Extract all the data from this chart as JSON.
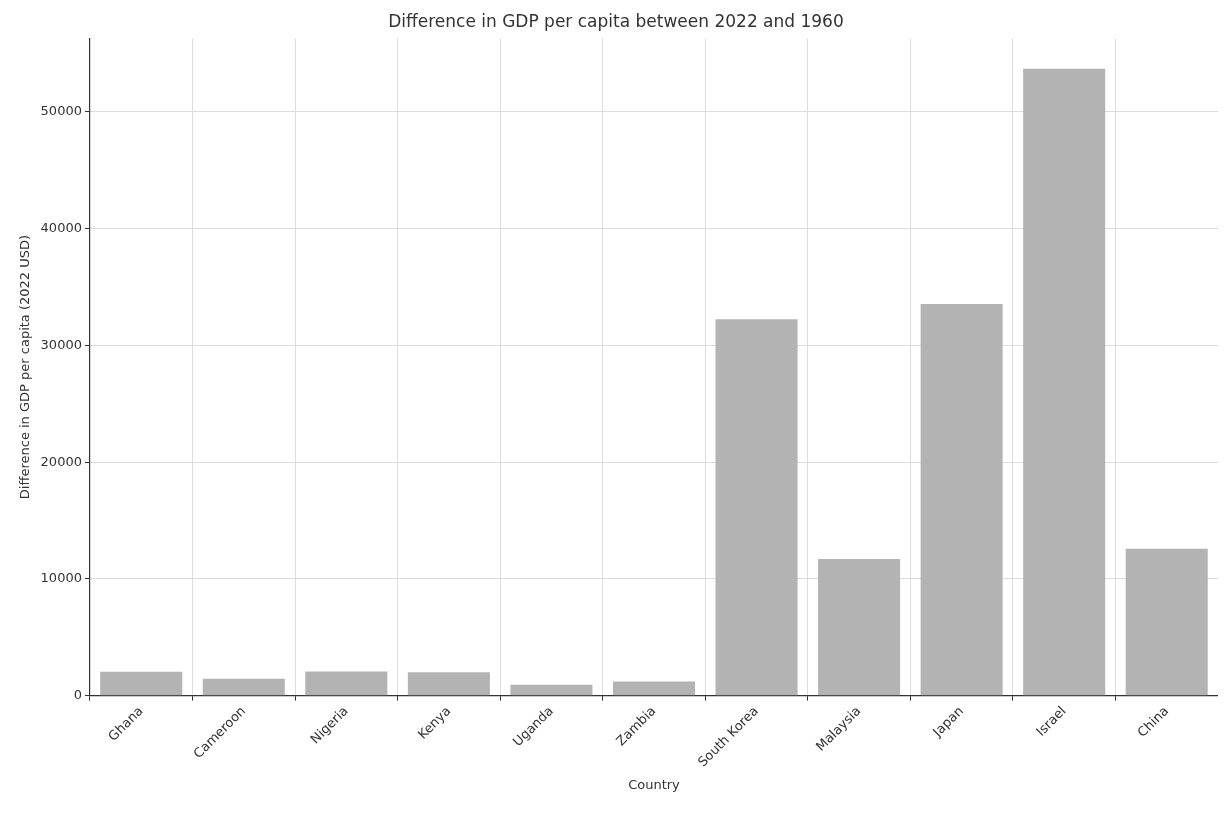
{
  "chart_data": {
    "type": "bar",
    "title": "Difference in GDP per capita between 2022 and 1960",
    "xlabel": "Country",
    "ylabel": "Difference in GDP per capita (2022 USD)",
    "categories": [
      "Ghana",
      "Cameroon",
      "Nigeria",
      "Kenya",
      "Uganda",
      "Zambia",
      "South Korea",
      "Malaysia",
      "Japan",
      "Israel",
      "China"
    ],
    "values": [
      2040,
      1450,
      2070,
      2000,
      940,
      1210,
      32250,
      11700,
      33550,
      53700,
      12580
    ],
    "color": "#b3b3b3",
    "ylim": [
      0,
      56300
    ],
    "yticks": [
      0,
      10000,
      20000,
      30000,
      40000,
      50000
    ],
    "grid": true
  }
}
